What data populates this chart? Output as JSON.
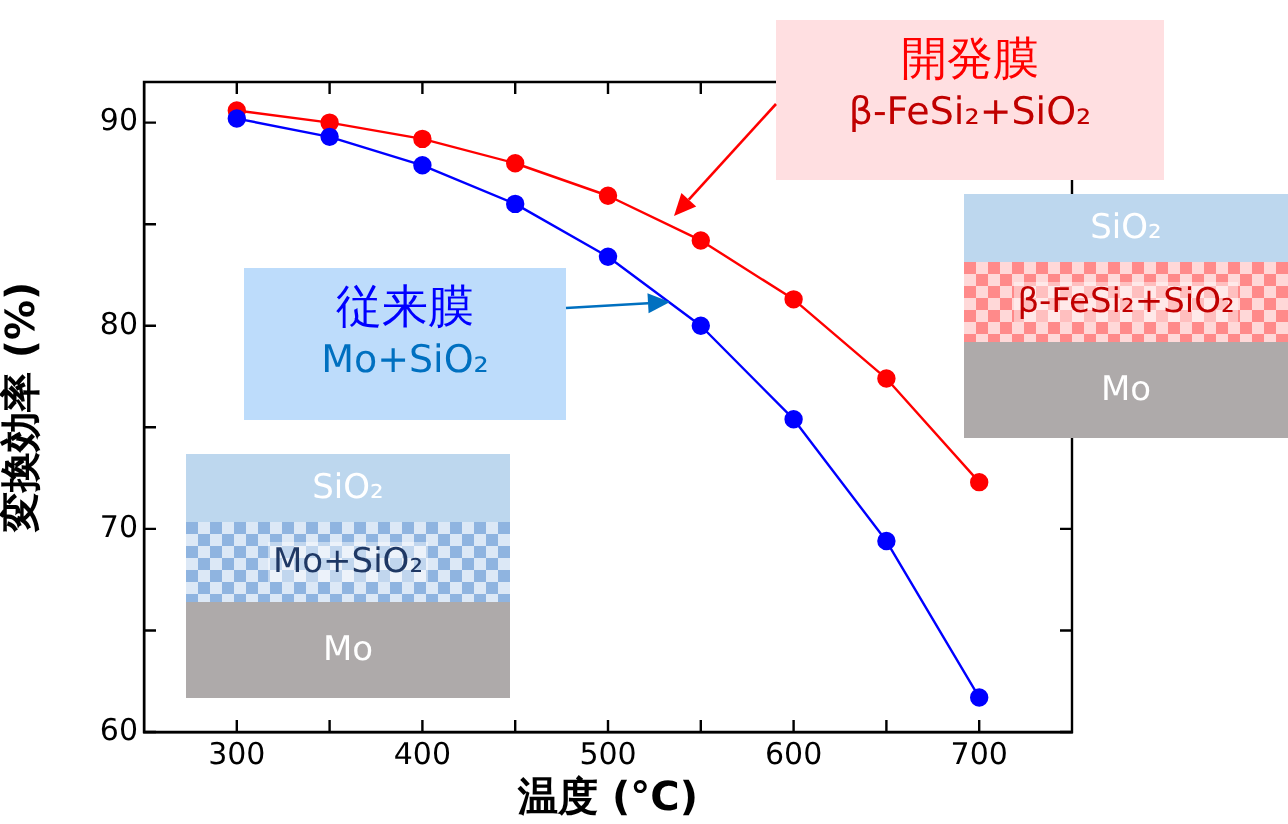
{
  "chart_data": {
    "type": "line",
    "xlabel": "温度 (°C)",
    "ylabel": "変換効率 (%)",
    "x": [
      300,
      350,
      400,
      450,
      500,
      550,
      600,
      650,
      700
    ],
    "xlim": [
      250,
      750
    ],
    "xticks": [
      300,
      {
        "value": 350,
        "label": null
      },
      400,
      {
        "value": 450,
        "label": null
      },
      500,
      {
        "value": 550,
        "label": null
      },
      600,
      {
        "value": 650,
        "label": null
      },
      700
    ],
    "ylim": [
      60,
      92
    ],
    "yticks": [
      60,
      {
        "value": 65,
        "label": null
      },
      70,
      {
        "value": 75,
        "label": null
      },
      80,
      {
        "value": 85,
        "label": null
      },
      90
    ],
    "grid": false,
    "marker": "circle",
    "line_style": "solid",
    "series": [
      {
        "name": "開発膜",
        "color": "#ff0000",
        "values": [
          90.6,
          90.0,
          89.2,
          88.0,
          86.4,
          84.2,
          81.3,
          77.4,
          72.3
        ]
      },
      {
        "name": "従来膜",
        "color": "#0000ff",
        "values": [
          90.2,
          89.3,
          87.9,
          86.0,
          83.4,
          80.0,
          75.4,
          69.4,
          61.7
        ]
      }
    ],
    "annotations": [
      "β-FeSi₂+SiO₂",
      "Mo+SiO₂",
      "SiO₂",
      "β-FeSi₂+SiO₂",
      "Mo",
      "SiO₂",
      "Mo+SiO₂",
      "Mo"
    ]
  }
}
